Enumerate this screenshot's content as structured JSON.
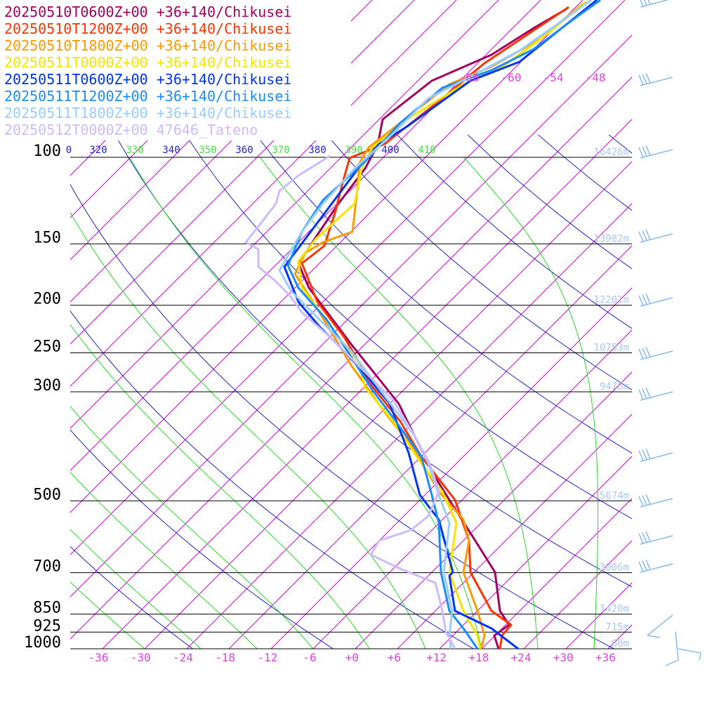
{
  "chart_data": {
    "type": "line",
    "title": "",
    "legend": [
      {
        "label": "20250510T0600Z+00 +36+140/Chikusei",
        "color": "#a3005f"
      },
      {
        "label": "20250510T1200Z+00 +36+140/Chikusei",
        "color": "#ff3300"
      },
      {
        "label": "20250510T1800Z+00 +36+140/Chikusei",
        "color": "#ff9900"
      },
      {
        "label": "20250511T0000Z+00 +36+140/Chikusei",
        "color": "#f2e600"
      },
      {
        "label": "20250511T0600Z+00 +36+140/Chikusei",
        "color": "#0033ff"
      },
      {
        "label": "20250511T1200Z+00 +36+140/Chikusei",
        "color": "#1a8cff"
      },
      {
        "label": "20250511T1800Z+00 +36+140/Chikusei",
        "color": "#99ccff"
      },
      {
        "label": "20250512T0000Z+00 47646_Tateno",
        "color": "#ccbbff"
      }
    ],
    "pressure_levels": [
      {
        "p": 100,
        "label": "100",
        "height": "16426m"
      },
      {
        "p": 150,
        "label": "150",
        "height": "13982m"
      },
      {
        "p": 200,
        "label": "200",
        "height": "12201m"
      },
      {
        "p": 250,
        "label": "250",
        "height": "10753m"
      },
      {
        "p": 300,
        "label": "300",
        "height": "9476m"
      },
      {
        "p": 500,
        "label": "500",
        "height": "5674m"
      },
      {
        "p": 700,
        "label": "700",
        "height": "3006m"
      },
      {
        "p": 850,
        "label": "850",
        "height": "1420m"
      },
      {
        "p": 925,
        "label": "925",
        "height": "715m"
      },
      {
        "p": 1000,
        "label": "1000",
        "height": "60m"
      }
    ],
    "temperature_ticks": [
      "-36",
      "-30",
      "-24",
      "-18",
      "-12",
      "-6",
      "+0",
      "+6",
      "+12",
      "+18",
      "+24",
      "+30",
      "+36"
    ],
    "upper_isotherm_labels": [
      "-66",
      "-60",
      "-54",
      "-48"
    ],
    "theta_labels": [
      {
        "label": "0",
        "kind": "dry"
      },
      {
        "label": "320",
        "kind": "dry"
      },
      {
        "label": "330",
        "kind": "moist"
      },
      {
        "label": "340",
        "kind": "dry"
      },
      {
        "label": "350",
        "kind": "moist"
      },
      {
        "label": "360",
        "kind": "dry"
      },
      {
        "label": "370",
        "kind": "moist"
      },
      {
        "label": "380",
        "kind": "dry"
      },
      {
        "label": "390",
        "kind": "moist"
      },
      {
        "label": "400",
        "kind": "dry"
      },
      {
        "label": "410",
        "kind": "moist"
      }
    ],
    "colors": {
      "isotherm": "#dd00dd",
      "dry_adiabat": "#2222cc",
      "moist_adiabat": "#22dd22",
      "isobar": "#000000",
      "height_text": "#aac8ee",
      "wind_barb": "#88bbee",
      "tick_label": "#dd44dd"
    }
  }
}
